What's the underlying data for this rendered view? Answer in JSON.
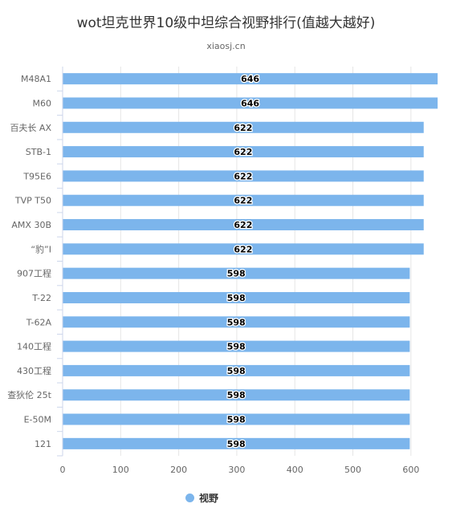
{
  "chart_data": {
    "type": "bar",
    "orientation": "horizontal",
    "title": "wot坦克世界10级中坦综合视野排行(值越大越好)",
    "subtitle": "xiaosj.cn",
    "categories": [
      "M48A1",
      "M60",
      "百夫长 AX",
      "STB-1",
      "T95E6",
      "TVP T50",
      "AMX 30B",
      "“豹”I",
      "907工程",
      "T-22",
      "T-62A",
      "140工程",
      "430工程",
      "查狄伦 25t",
      "E-50M",
      "121"
    ],
    "series": [
      {
        "name": "视野",
        "color": "#7cb5ec",
        "values": [
          646,
          646,
          622,
          622,
          622,
          622,
          622,
          622,
          598,
          598,
          598,
          598,
          598,
          598,
          598,
          598
        ]
      }
    ],
    "xlim": [
      0,
      650
    ],
    "x_ticks": [
      0,
      100,
      200,
      300,
      400,
      500,
      600
    ],
    "grid": true,
    "legend_position": "bottom"
  }
}
